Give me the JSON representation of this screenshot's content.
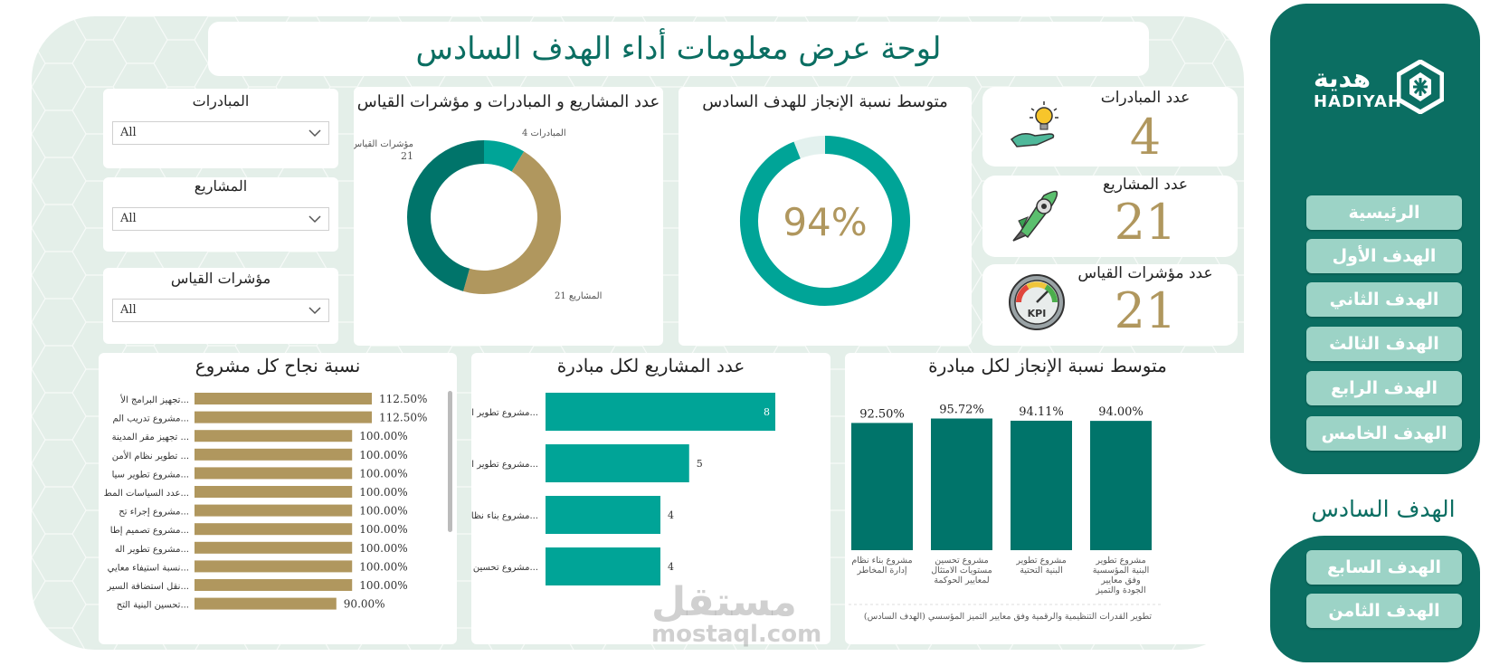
{
  "page": {
    "title": "لوحة عرض معلومات أداء الهدف السادس"
  },
  "sidebar": {
    "logo_ar": "هدية",
    "logo_en": "HADIYAH",
    "items": [
      {
        "label": "الرئيسية"
      },
      {
        "label": "الهدف الأول"
      },
      {
        "label": "الهدف الثاني"
      },
      {
        "label": "الهدف الثالث"
      },
      {
        "label": "الهدف الرابع"
      },
      {
        "label": "الهدف الخامس"
      },
      {
        "label": "الهدف السادس",
        "active": true
      },
      {
        "label": "الهدف السابع"
      },
      {
        "label": "الهدف الثامن"
      }
    ]
  },
  "filters": [
    {
      "label": "المبادرات",
      "value": "All"
    },
    {
      "label": "المشاريع",
      "value": "All"
    },
    {
      "label": "مؤشرات القياس",
      "value": "All"
    }
  ],
  "kpis": [
    {
      "label": "عدد المبادرات",
      "value": "4",
      "icon": "lightbulb-hand-icon"
    },
    {
      "label": "عدد المشاريع",
      "value": "21",
      "icon": "rocket-gear-icon"
    },
    {
      "label": "عدد مؤشرات القياس",
      "value": "21",
      "icon": "kpi-gauge-icon"
    }
  ],
  "colors": {
    "teal_dark": "#00746a",
    "teal": "#00a497",
    "gold": "#b0975e",
    "sidebar": "#0b6e62",
    "nav_button": "#9cd3c6"
  },
  "watermark": {
    "ar": "مستقل",
    "en": "mostaql.com"
  },
  "chart_data": [
    {
      "id": "donut",
      "type": "pie",
      "title": "عدد المشاريع و المبادرات و مؤشرات القياس",
      "categories": [
        "المبادرات",
        "المشاريع",
        "مؤشرات القياس"
      ],
      "values": [
        4,
        21,
        21
      ],
      "colors": [
        "#00a497",
        "#b0975e",
        "#00746a"
      ]
    },
    {
      "id": "gauge",
      "type": "pie",
      "title": "متوسط نسبة الإنجاز للهدف السادس",
      "value": 0.94,
      "label": "94%"
    },
    {
      "id": "success",
      "type": "bar",
      "title": "نسبة نجاح كل مشروع",
      "categories": [
        "تجهيز البرامج الأ...",
        "مشروع تدريب الم...",
        "تجهيز مقر المدينة ...",
        "تطوير نظام الأمن ...",
        "مشروع تطوير سيا...",
        "عدد السياسات المط...",
        "مشروع إجراء تح...",
        "مشروع تصميم إطا...",
        "مشروع تطوير اله...",
        "نسبة استيفاء معايي...",
        "نقل استضافة السير...",
        "تحسين البنية التح..."
      ],
      "values": [
        112.5,
        112.5,
        100,
        100,
        100,
        100,
        100,
        100,
        100,
        100,
        100,
        90
      ],
      "labels": [
        "112.50%",
        "112.50%",
        "100.00%",
        "100.00%",
        "100.00%",
        "100.00%",
        "100.00%",
        "100.00%",
        "100.00%",
        "100.00%",
        "100.00%",
        "90.00%"
      ],
      "xlim": [
        0,
        112.5
      ]
    },
    {
      "id": "projects_per_initiative",
      "type": "bar",
      "title": "عدد المشاريع لكل مبادرة",
      "categories": [
        "مشروع تطوير ال...",
        "مشروع تطوير ال...",
        "مشروع بناء نظام إ...",
        "مشروع تحسين م..."
      ],
      "values": [
        8,
        5,
        4,
        4
      ],
      "xlim": [
        0,
        8
      ]
    },
    {
      "id": "avg_per_initiative",
      "type": "bar",
      "title": "متوسط نسبة الإنجاز لكل مبادرة",
      "categories": [
        "مشروع بناء نظام إدارة المخاطر",
        "مشروع تحسين مستويات الامتثال لمعايير الحوكمة",
        "مشروع تطوير البنية التحتية",
        "مشروع تطوير البنية المؤسسية وفق معايير الجودة والتميز المؤسس"
      ],
      "values": [
        92.5,
        95.72,
        94.11,
        94.0
      ],
      "labels": [
        "92.50%",
        "95.72%",
        "94.11%",
        "94.00%"
      ],
      "xlabel": "تطوير القدرات التنظيمية والرقمية وفق معايير التميز المؤسسي (الهدف السادس)"
    }
  ]
}
